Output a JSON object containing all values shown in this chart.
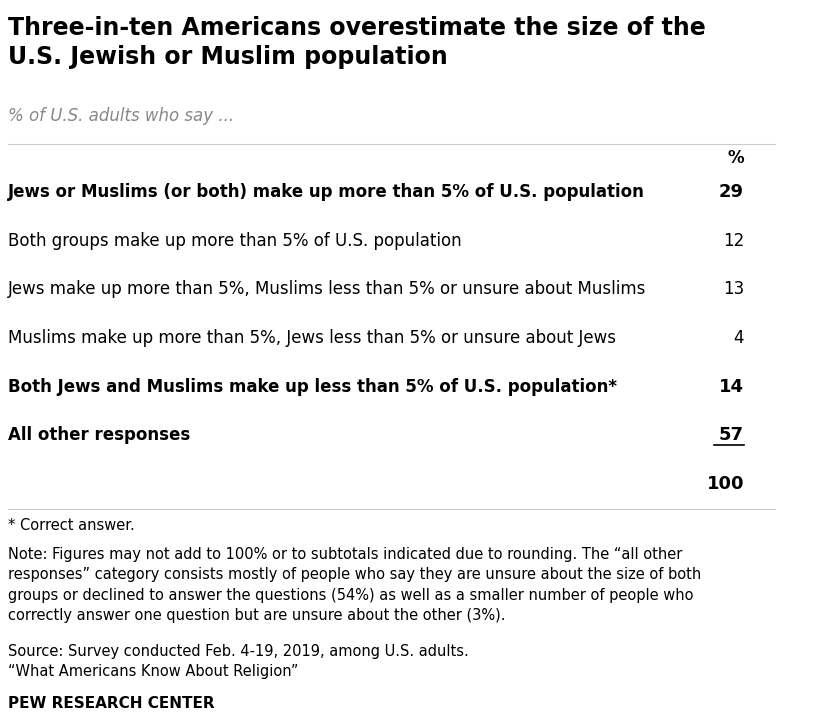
{
  "title": "Three-in-ten Americans overestimate the size of the\nU.S. Jewish or Muslim population",
  "subtitle": "% of U.S. adults who say ...",
  "col_header": "%",
  "rows": [
    {
      "label": "Jews or Muslims (or both) make up more than 5% of U.S. population",
      "value": "29",
      "bold": true,
      "indent": false,
      "underline": false
    },
    {
      "label": "Both groups make up more than 5% of U.S. population",
      "value": "12",
      "bold": false,
      "indent": true,
      "underline": false
    },
    {
      "label": "Jews make up more than 5%, Muslims less than 5% or unsure about Muslims",
      "value": "13",
      "bold": false,
      "indent": true,
      "underline": false
    },
    {
      "label": "Muslims make up more than 5%, Jews less than 5% or unsure about Jews",
      "value": "4",
      "bold": false,
      "indent": true,
      "underline": false
    },
    {
      "label": "Both Jews and Muslims make up less than 5% of U.S. population*",
      "value": "14",
      "bold": true,
      "indent": false,
      "underline": false
    },
    {
      "label": "All other responses",
      "value": "57",
      "bold": true,
      "indent": false,
      "underline": true
    },
    {
      "label": "",
      "value": "100",
      "bold": true,
      "indent": false,
      "underline": false
    }
  ],
  "footnote_asterisk": "* Correct answer.",
  "footnote_note": "Note: Figures may not add to 100% or to subtotals indicated due to rounding. The “all other\nresponses” category consists mostly of people who say they are unsure about the size of both\ngroups or declined to answer the questions (54%) as well as a smaller number of people who\ncorrectly answer one question but are unsure about the other (3%).",
  "footnote_source": "Source: Survey conducted Feb. 4-19, 2019, among U.S. adults.\n“What Americans Know About Religion”",
  "footnote_branding": "PEW RESEARCH CENTER",
  "bg_color": "#ffffff",
  "text_color": "#000000",
  "subtitle_color": "#888888",
  "title_fontsize": 17,
  "subtitle_fontsize": 12,
  "row_fontsize": 12,
  "footnote_fontsize": 10.5,
  "branding_fontsize": 11
}
